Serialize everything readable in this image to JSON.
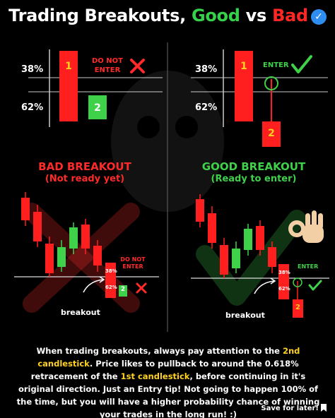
{
  "title": {
    "part1": "Trading Breakouts, ",
    "good": "Good",
    "mid": " vs ",
    "bad": "Bad"
  },
  "icons": {
    "verified": "verified-check-icon",
    "cross": "red-x-icon",
    "check": "green-check-icon",
    "hand": "ok-hand-icon",
    "bookmark": "bookmark-icon"
  },
  "colors": {
    "red": "#ff2626",
    "green": "#36d14a",
    "highlight": "#ffd21f"
  },
  "top_left": {
    "pct_38": "38%",
    "pct_62": "62%",
    "candle1": "1",
    "candle2": "2",
    "warning": "DO NOT ENTER"
  },
  "top_right": {
    "pct_38": "38%",
    "pct_62": "62%",
    "candle1": "1",
    "candle2": "2",
    "enter": "ENTER"
  },
  "bad": {
    "heading": "BAD BREAKOUT",
    "sub": "(Not ready yet)",
    "warning": "DO NOT ENTER",
    "pct_38": "38%",
    "pct_62": "62%",
    "candle2": "2",
    "label": "breakout"
  },
  "good": {
    "heading": "GOOD BREAKOUT",
    "sub": "(Ready to enter)",
    "enter": "ENTER",
    "pct_38": "38%",
    "pct_62": "62%",
    "candle2": "2",
    "label": "breakout"
  },
  "caption": {
    "t1": "When trading breakouts, always pay attention to the ",
    "h1": "2nd candlestick",
    "t2": ". Price likes to pullback to around the 0.618% retracement of the ",
    "h2": "1st candlestick",
    "t3": ", before continuing in it's original direction. Just an Entry tip! Not going to happen 100% of the time, but you will have a higher probability chance of winning your trades in the long run! :)"
  },
  "save_label": "Save for later!"
}
